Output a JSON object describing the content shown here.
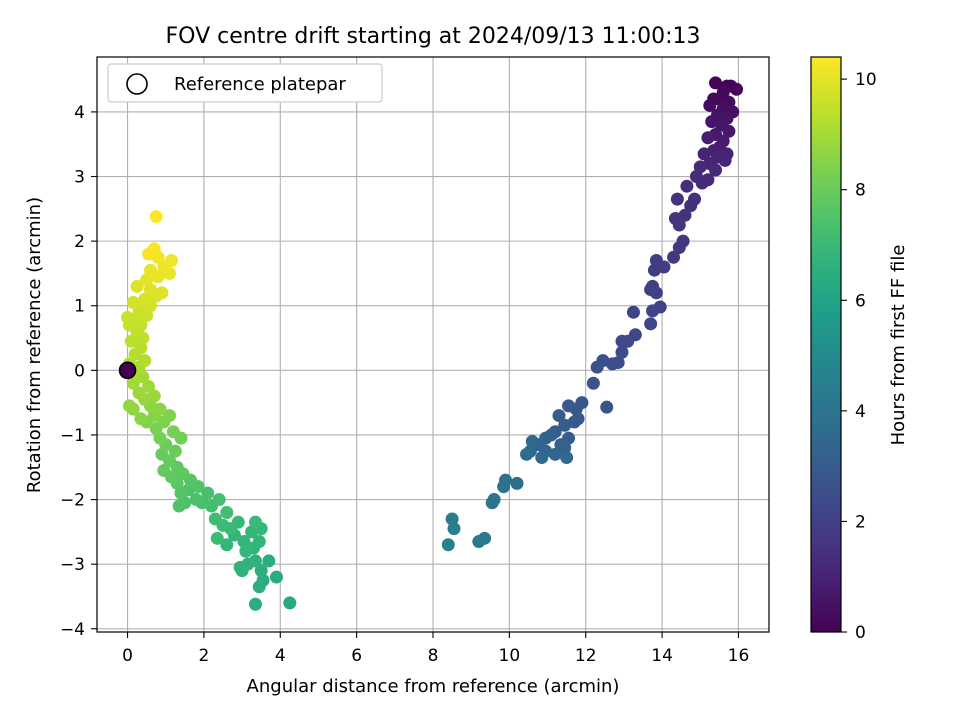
{
  "chart_data": {
    "type": "scatter",
    "title": "FOV centre drift starting at 2024/09/13 11:00:13",
    "xlabel": "Angular distance from reference (arcmin)",
    "ylabel": "Rotation from reference (arcmin)",
    "xlim": [
      -0.8,
      16.8
    ],
    "ylim": [
      -4.05,
      4.85
    ],
    "xticks": [
      0,
      2,
      4,
      6,
      8,
      10,
      12,
      14,
      16
    ],
    "yticks": [
      -4,
      -3,
      -2,
      -1,
      0,
      1,
      2,
      3,
      4
    ],
    "grid": true,
    "legend": {
      "position": "top-left",
      "entries": [
        "Reference platepar"
      ]
    },
    "colorbar": {
      "label": "Hours from first FF file",
      "min": 0,
      "max": 10.4,
      "ticks": [
        0,
        2,
        4,
        6,
        8,
        10
      ],
      "colormap": "viridis"
    },
    "reference_point": {
      "x": 0,
      "y": 0,
      "label": "Reference platepar"
    },
    "series": [
      {
        "note_free": true,
        "points": [
          [
            15.4,
            4.45,
            0.1
          ],
          [
            15.7,
            4.4,
            0.1
          ],
          [
            15.8,
            4.4,
            0.12
          ],
          [
            15.95,
            4.35,
            0.15
          ],
          [
            15.6,
            4.3,
            0.2
          ],
          [
            15.35,
            4.2,
            0.25
          ],
          [
            15.5,
            4.2,
            0.25
          ],
          [
            15.75,
            4.15,
            0.3
          ],
          [
            15.25,
            4.1,
            0.35
          ],
          [
            15.6,
            4.05,
            0.4
          ],
          [
            15.85,
            4.0,
            0.45
          ],
          [
            15.45,
            3.95,
            0.5
          ],
          [
            15.7,
            3.9,
            0.55
          ],
          [
            15.3,
            3.85,
            0.6
          ],
          [
            15.55,
            3.8,
            0.65
          ],
          [
            15.75,
            3.7,
            0.7
          ],
          [
            15.4,
            3.65,
            0.75
          ],
          [
            15.6,
            3.55,
            0.8
          ],
          [
            15.2,
            3.6,
            0.85
          ],
          [
            15.5,
            3.45,
            0.9
          ],
          [
            15.35,
            3.4,
            0.95
          ],
          [
            15.7,
            3.35,
            1.0
          ],
          [
            15.1,
            3.35,
            1.0
          ],
          [
            15.45,
            3.3,
            1.05
          ],
          [
            15.65,
            3.25,
            1.1
          ],
          [
            15.25,
            3.2,
            1.1
          ],
          [
            15.0,
            3.15,
            1.15
          ],
          [
            15.4,
            3.1,
            1.2
          ],
          [
            15.2,
            2.95,
            1.25
          ],
          [
            14.9,
            3.0,
            1.3
          ],
          [
            15.05,
            2.9,
            1.3
          ],
          [
            14.65,
            2.85,
            1.35
          ],
          [
            14.85,
            2.65,
            1.4
          ],
          [
            14.75,
            2.55,
            1.45
          ],
          [
            14.4,
            2.65,
            1.5
          ],
          [
            14.6,
            2.4,
            1.55
          ],
          [
            14.35,
            2.35,
            1.6
          ],
          [
            14.45,
            2.25,
            1.65
          ],
          [
            14.55,
            2.0,
            1.7
          ],
          [
            14.45,
            1.9,
            1.75
          ],
          [
            14.3,
            1.75,
            1.8
          ],
          [
            13.85,
            1.7,
            1.85
          ],
          [
            13.8,
            1.55,
            1.9
          ],
          [
            14.05,
            1.6,
            1.9
          ],
          [
            13.75,
            1.3,
            1.95
          ],
          [
            13.85,
            1.2,
            2.0
          ],
          [
            13.7,
            1.25,
            2.0
          ],
          [
            13.95,
            0.98,
            2.05
          ],
          [
            13.75,
            0.92,
            2.1
          ],
          [
            13.25,
            0.9,
            2.15
          ],
          [
            13.7,
            0.72,
            2.2
          ],
          [
            13.3,
            0.55,
            2.25
          ],
          [
            13.1,
            0.45,
            2.3
          ],
          [
            12.95,
            0.45,
            2.35
          ],
          [
            12.95,
            0.28,
            2.4
          ],
          [
            12.7,
            0.1,
            2.45
          ],
          [
            12.85,
            0.12,
            2.5
          ],
          [
            12.45,
            0.15,
            2.55
          ],
          [
            12.3,
            0.05,
            2.6
          ],
          [
            12.2,
            -0.2,
            2.7
          ],
          [
            11.9,
            -0.5,
            2.8
          ],
          [
            11.75,
            -0.6,
            2.85
          ],
          [
            11.8,
            -0.75,
            2.9
          ],
          [
            11.55,
            -0.55,
            2.9
          ],
          [
            11.7,
            -0.8,
            2.95
          ],
          [
            12.55,
            -0.57,
            2.75
          ],
          [
            11.45,
            -0.85,
            3.0
          ],
          [
            11.3,
            -0.7,
            3.05
          ],
          [
            11.2,
            -0.95,
            3.1
          ],
          [
            11.55,
            -1.05,
            3.1
          ],
          [
            11.35,
            -1.15,
            3.15
          ],
          [
            11.1,
            -1.0,
            3.2
          ],
          [
            10.95,
            -1.05,
            3.25
          ],
          [
            11.45,
            -1.2,
            3.3
          ],
          [
            11.2,
            -1.3,
            3.3
          ],
          [
            10.75,
            -1.15,
            3.35
          ],
          [
            10.95,
            -1.25,
            3.4
          ],
          [
            10.85,
            -1.35,
            3.45
          ],
          [
            10.55,
            -1.25,
            3.5
          ],
          [
            10.6,
            -1.1,
            3.5
          ],
          [
            11.5,
            -1.35,
            3.5
          ],
          [
            10.45,
            -1.3,
            3.55
          ],
          [
            10.2,
            -1.75,
            3.7
          ],
          [
            9.9,
            -1.7,
            3.8
          ],
          [
            9.85,
            -1.8,
            3.85
          ],
          [
            9.6,
            -2.0,
            3.95
          ],
          [
            9.55,
            -2.05,
            4.0
          ],
          [
            9.35,
            -2.6,
            4.2
          ],
          [
            9.2,
            -2.65,
            4.25
          ],
          [
            8.5,
            -2.3,
            4.4
          ],
          [
            8.55,
            -2.45,
            4.45
          ],
          [
            8.4,
            -2.7,
            4.6
          ],
          [
            4.25,
            -3.6,
            6.3
          ],
          [
            3.9,
            -3.2,
            6.35
          ],
          [
            3.55,
            -3.25,
            6.4
          ],
          [
            3.7,
            -2.95,
            6.45
          ],
          [
            3.35,
            -3.62,
            6.45
          ],
          [
            3.45,
            -3.35,
            6.5
          ],
          [
            3.5,
            -3.1,
            6.55
          ],
          [
            3.35,
            -2.95,
            6.6
          ],
          [
            3.0,
            -3.1,
            6.65
          ],
          [
            2.95,
            -3.05,
            6.7
          ],
          [
            3.15,
            -3.0,
            6.7
          ],
          [
            3.3,
            -2.75,
            6.75
          ],
          [
            3.05,
            -2.65,
            6.8
          ],
          [
            3.45,
            -2.65,
            6.85
          ],
          [
            2.8,
            -2.55,
            6.85
          ],
          [
            3.25,
            -2.5,
            6.9
          ],
          [
            3.5,
            -2.45,
            6.9
          ],
          [
            2.6,
            -2.7,
            6.95
          ],
          [
            3.1,
            -2.8,
            6.95
          ],
          [
            2.9,
            -2.35,
            7.0
          ],
          [
            2.7,
            -2.45,
            7.05
          ],
          [
            3.35,
            -2.35,
            7.05
          ],
          [
            2.35,
            -2.6,
            7.1
          ],
          [
            2.5,
            -2.4,
            7.1
          ],
          [
            2.3,
            -2.3,
            7.15
          ],
          [
            2.6,
            -2.2,
            7.2
          ],
          [
            2.2,
            -2.1,
            7.25
          ],
          [
            2.4,
            -2.0,
            7.3
          ],
          [
            1.95,
            -2.05,
            7.35
          ],
          [
            2.1,
            -1.9,
            7.35
          ],
          [
            1.8,
            -2.0,
            7.4
          ],
          [
            1.5,
            -2.05,
            7.45
          ],
          [
            1.35,
            -2.1,
            7.5
          ],
          [
            1.6,
            -1.85,
            7.5
          ],
          [
            1.85,
            -1.8,
            7.55
          ],
          [
            1.4,
            -1.9,
            7.6
          ],
          [
            1.65,
            -1.7,
            7.65
          ],
          [
            1.3,
            -1.75,
            7.7
          ],
          [
            1.45,
            -1.6,
            7.75
          ],
          [
            1.15,
            -1.65,
            7.8
          ],
          [
            1.3,
            -1.5,
            7.85
          ],
          [
            0.95,
            -1.55,
            7.9
          ],
          [
            1.1,
            -1.4,
            7.95
          ],
          [
            0.9,
            -1.3,
            8.0
          ],
          [
            1.25,
            -1.25,
            8.0
          ],
          [
            1.0,
            -1.15,
            8.1
          ],
          [
            1.4,
            -1.05,
            8.15
          ],
          [
            0.85,
            -1.05,
            8.2
          ],
          [
            1.2,
            -0.95,
            8.25
          ],
          [
            0.75,
            -0.9,
            8.3
          ],
          [
            0.95,
            -0.8,
            8.35
          ],
          [
            1.1,
            -0.7,
            8.4
          ],
          [
            0.5,
            -0.8,
            8.45
          ],
          [
            0.7,
            -0.7,
            8.5
          ],
          [
            0.35,
            -0.75,
            8.55
          ],
          [
            0.85,
            -0.6,
            8.6
          ],
          [
            0.6,
            -0.55,
            8.6
          ],
          [
            0.15,
            -0.6,
            8.65
          ],
          [
            0.05,
            -0.55,
            8.7
          ],
          [
            0.45,
            -0.45,
            8.75
          ],
          [
            0.7,
            -0.4,
            8.8
          ],
          [
            0.3,
            -0.35,
            8.85
          ],
          [
            0.55,
            -0.25,
            8.9
          ],
          [
            0.15,
            -0.2,
            8.95
          ],
          [
            0.4,
            -0.1,
            9.0
          ],
          [
            0.1,
            -0.05,
            9.05
          ],
          [
            0.3,
            0.05,
            9.1
          ],
          [
            0.05,
            0.1,
            9.15
          ],
          [
            0.45,
            0.15,
            9.2
          ],
          [
            0.2,
            0.25,
            9.25
          ],
          [
            0.35,
            0.35,
            9.3
          ],
          [
            0.1,
            0.45,
            9.35
          ],
          [
            0.4,
            0.5,
            9.4
          ],
          [
            0.25,
            0.6,
            9.45
          ],
          [
            0.05,
            0.7,
            9.5
          ],
          [
            0.35,
            0.7,
            9.5
          ],
          [
            0.2,
            0.8,
            9.55
          ],
          [
            0.5,
            0.85,
            9.6
          ],
          [
            0.0,
            0.82,
            9.6
          ],
          [
            0.3,
            0.95,
            9.65
          ],
          [
            0.6,
            1.0,
            9.7
          ],
          [
            0.15,
            1.05,
            9.75
          ],
          [
            0.45,
            1.1,
            9.8
          ],
          [
            0.75,
            1.15,
            9.85
          ],
          [
            0.6,
            1.25,
            9.9
          ],
          [
            0.25,
            1.3,
            9.9
          ],
          [
            0.9,
            1.2,
            9.95
          ],
          [
            0.5,
            1.4,
            10.0
          ],
          [
            0.8,
            1.45,
            10.05
          ],
          [
            1.1,
            1.5,
            10.1
          ],
          [
            0.6,
            1.55,
            10.1
          ],
          [
            0.95,
            1.6,
            10.15
          ],
          [
            0.8,
            1.75,
            10.2
          ],
          [
            1.15,
            1.7,
            10.2
          ],
          [
            0.55,
            1.8,
            10.25
          ],
          [
            0.7,
            1.88,
            10.3
          ],
          [
            0.75,
            2.38,
            10.35
          ]
        ]
      }
    ]
  }
}
